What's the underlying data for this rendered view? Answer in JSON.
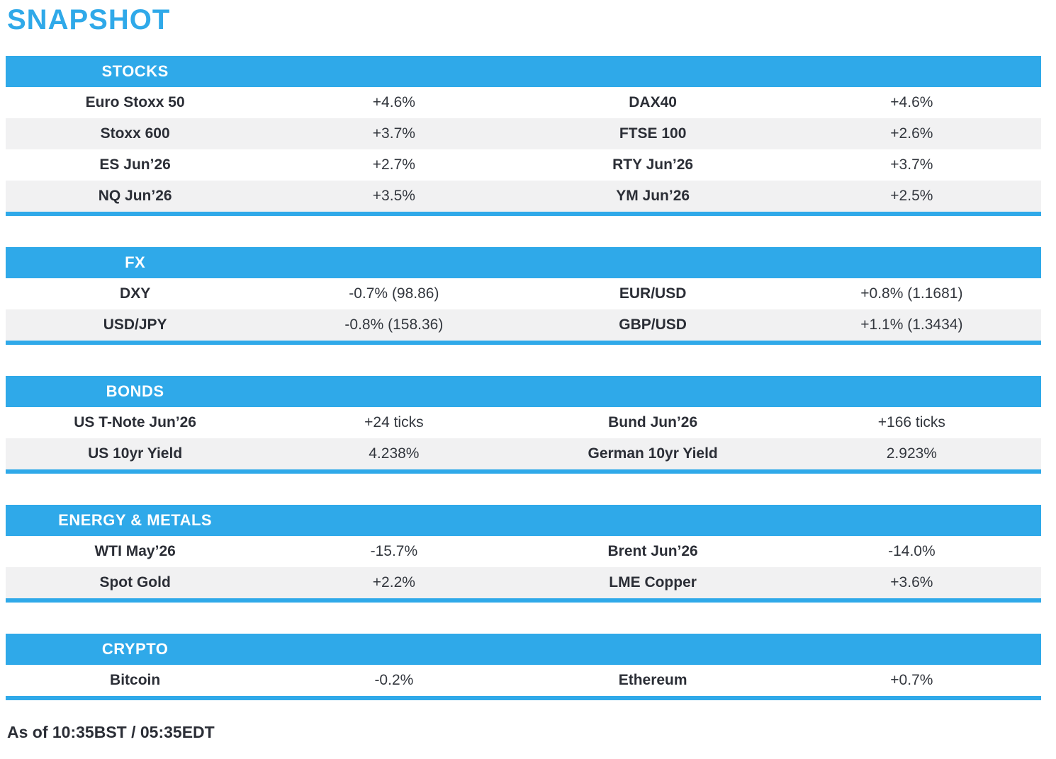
{
  "page_title": "SNAPSHOT",
  "colors": {
    "accent_blue": "#2FA9E9",
    "row_alt_grey": "#F1F1F2",
    "text_dark": "#2B2E36",
    "header_text": "#FFFFFF"
  },
  "sections": [
    {
      "title": "STOCKS",
      "rows": [
        [
          "Euro Stoxx 50",
          "+4.6%",
          "DAX40",
          "+4.6%"
        ],
        [
          "Stoxx 600",
          "+3.7%",
          "FTSE 100",
          "+2.6%"
        ],
        [
          "ES Jun’26",
          "+2.7%",
          "RTY Jun’26",
          "+3.7%"
        ],
        [
          "NQ Jun’26",
          "+3.5%",
          "YM Jun’26",
          "+2.5%"
        ]
      ]
    },
    {
      "title": "FX",
      "rows": [
        [
          "DXY",
          "-0.7% (98.86)",
          "EUR/USD",
          "+0.8% (1.1681)"
        ],
        [
          "USD/JPY",
          "-0.8% (158.36)",
          "GBP/USD",
          "+1.1% (1.3434)"
        ]
      ]
    },
    {
      "title": "BONDS",
      "rows": [
        [
          "US T-Note Jun’26",
          "+24 ticks",
          "Bund Jun’26",
          "+166 ticks"
        ],
        [
          "US 10yr Yield",
          "4.238%",
          "German 10yr Yield",
          "2.923%"
        ]
      ]
    },
    {
      "title": "ENERGY & METALS",
      "rows": [
        [
          "WTI May’26",
          "-15.7%",
          "Brent Jun’26",
          "-14.0%"
        ],
        [
          "Spot Gold",
          "+2.2%",
          "LME Copper",
          "+3.6%"
        ]
      ]
    },
    {
      "title": "CRYPTO",
      "rows": [
        [
          "Bitcoin",
          "-0.2%",
          "Ethereum",
          "+0.7%"
        ]
      ]
    }
  ],
  "footer": {
    "text": "As of 10:35BST / 05:35EDT"
  }
}
